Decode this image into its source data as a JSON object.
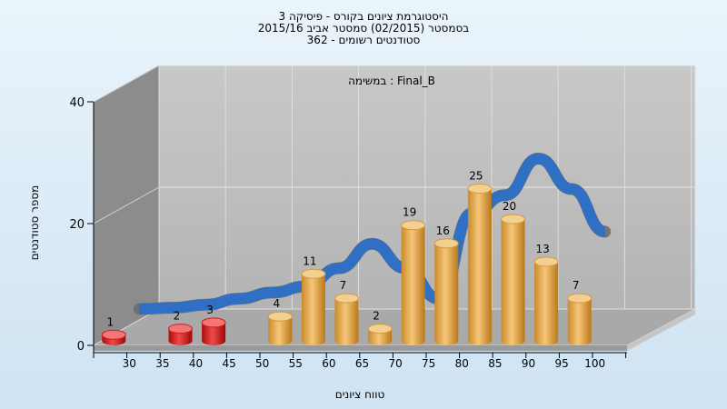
{
  "chart_data": {
    "type": "bar",
    "title_lines": [
      "היסטוגרמת ציונים בקורס - פיסיקה 3",
      "בסמסטר  (02/2015)  סמסטר אביב 2015/16",
      "סטודנטים רשומים - 362"
    ],
    "plot_label": "במשימה : Final_B",
    "xlabel": "טווח ציונים",
    "ylabel": "מספר סטודנטים",
    "x_ticks": [
      "30",
      "35",
      "40",
      "45",
      "50",
      "55",
      "60",
      "65",
      "70",
      "75",
      "80",
      "85",
      "90",
      "95",
      "100"
    ],
    "y_ticks": [
      0,
      20,
      40
    ],
    "ylim": [
      0,
      40
    ],
    "grid": true,
    "bars": [
      {
        "x": 30,
        "value": 1,
        "color": "red"
      },
      {
        "x": 40,
        "value": 2,
        "color": "red"
      },
      {
        "x": 45,
        "value": 3,
        "color": "red"
      },
      {
        "x": 55,
        "value": 4,
        "color": "orange"
      },
      {
        "x": 60,
        "value": 11,
        "color": "orange"
      },
      {
        "x": 65,
        "value": 7,
        "color": "orange"
      },
      {
        "x": 70,
        "value": 2,
        "color": "orange"
      },
      {
        "x": 75,
        "value": 19,
        "color": "orange"
      },
      {
        "x": 80,
        "value": 16,
        "color": "orange"
      },
      {
        "x": 85,
        "value": 25,
        "color": "orange"
      },
      {
        "x": 90,
        "value": 20,
        "color": "orange"
      },
      {
        "x": 95,
        "value": 13,
        "color": "orange"
      },
      {
        "x": 100,
        "value": 7,
        "color": "orange"
      }
    ],
    "curve": {
      "x": [
        30,
        35,
        40,
        45,
        50,
        55,
        60,
        65,
        70,
        75,
        80,
        85,
        90,
        95,
        100
      ],
      "y": [
        0.3,
        0.5,
        1,
        2,
        3,
        4,
        7,
        11,
        7,
        2,
        16,
        19,
        25,
        20,
        13
      ]
    }
  }
}
